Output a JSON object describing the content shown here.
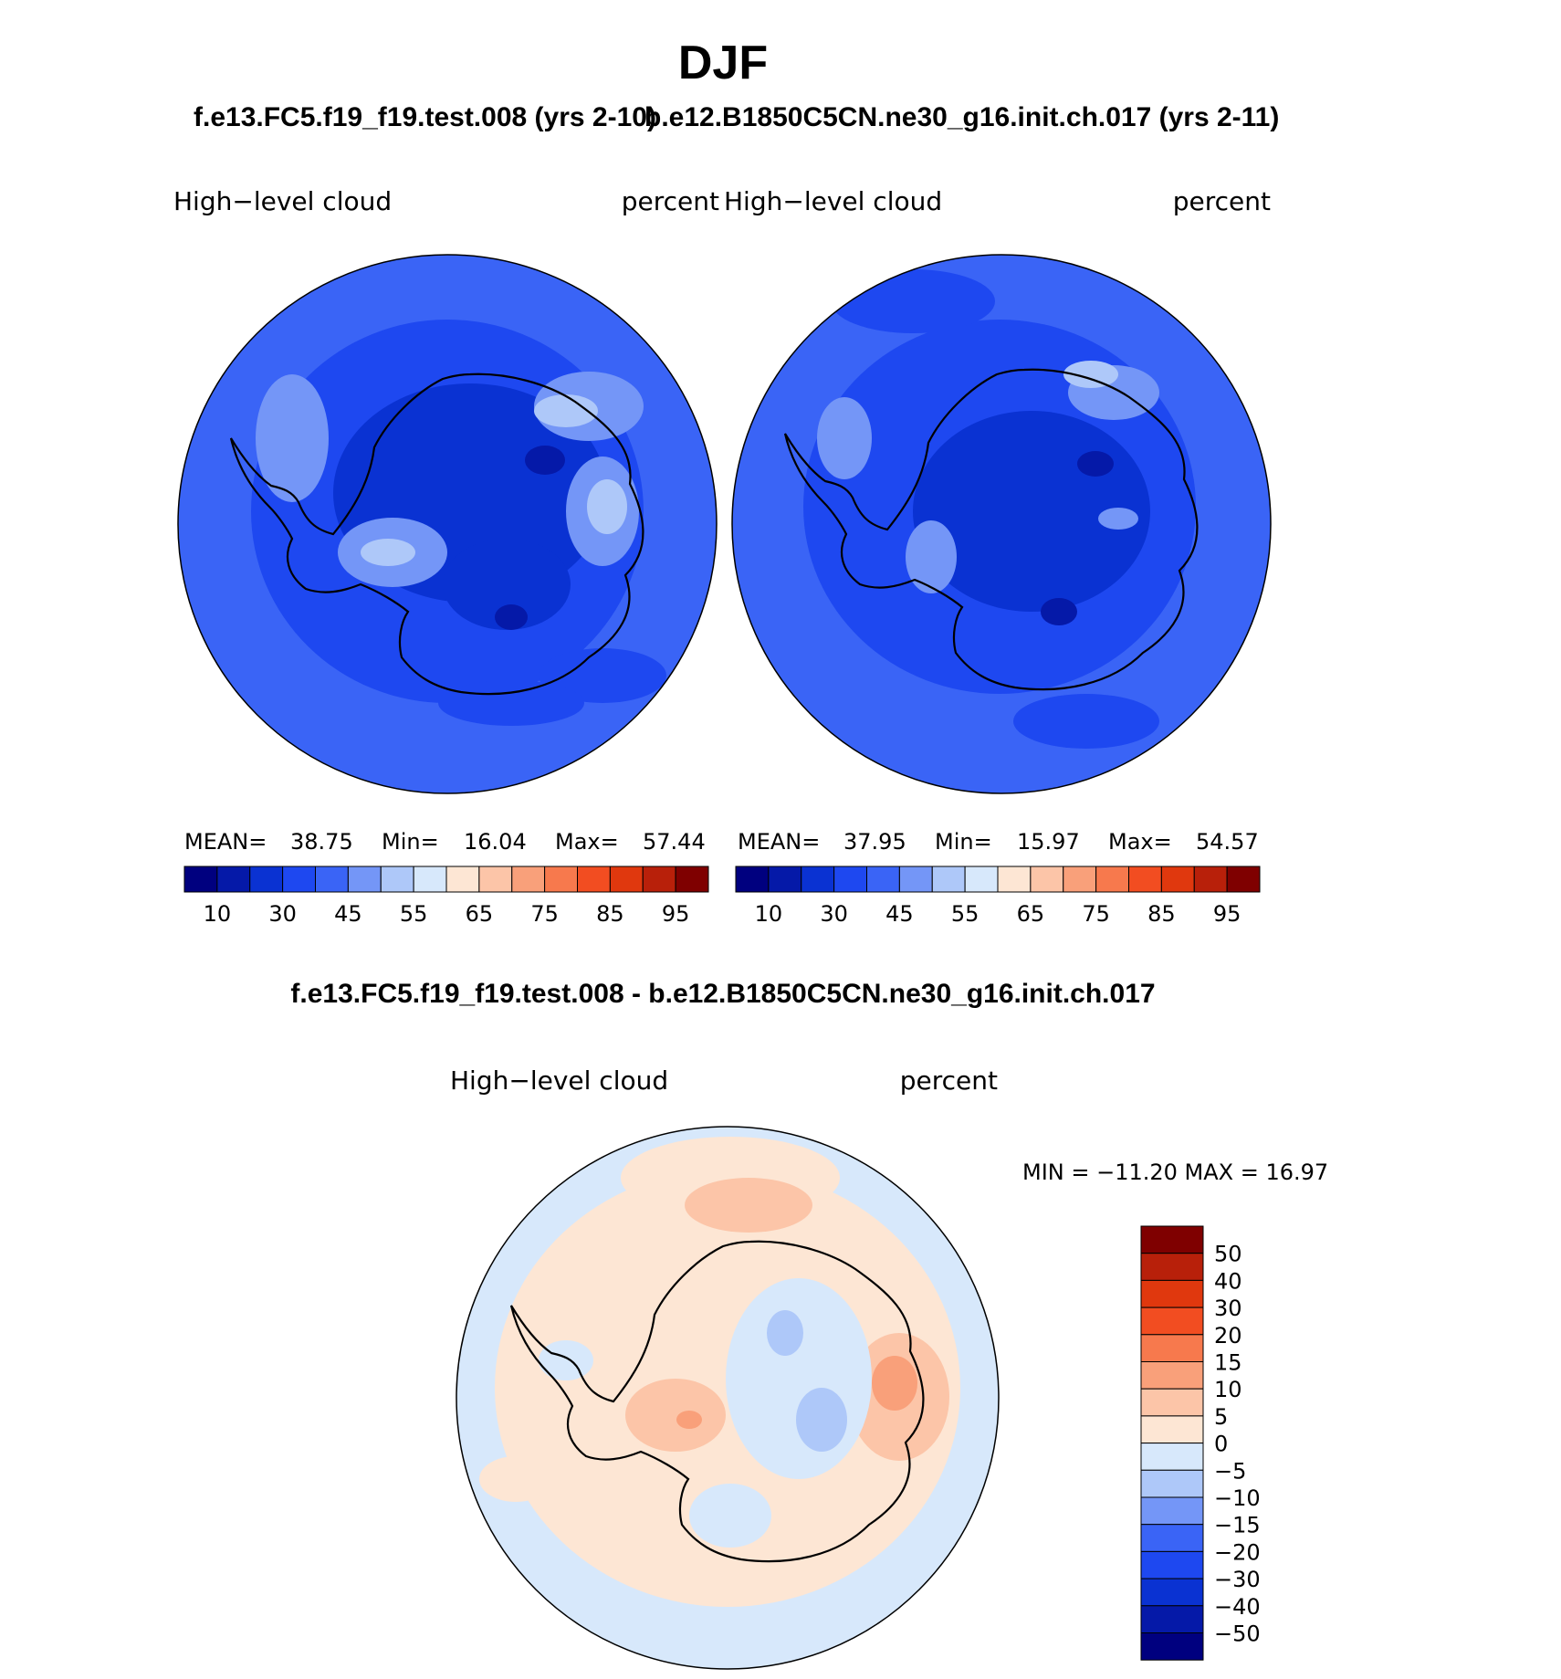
{
  "page_title": "DJF",
  "panels": [
    {
      "case": "f.e13.FC5.f19_f19.test.008 (yrs 2-10)",
      "variable": "High−level  cloud",
      "units": "percent",
      "stats": {
        "mean_label": "MEAN=",
        "mean": "38.75",
        "min_label": "Min=",
        "min": "16.04",
        "max_label": "Max=",
        "max": "57.44"
      }
    },
    {
      "case": "b.e12.B1850C5CN.ne30_g16.init.ch.017 (yrs 2-11)",
      "variable": "High−level  cloud",
      "units": "percent",
      "stats": {
        "mean_label": "MEAN=",
        "mean": "37.95",
        "min_label": "Min=",
        "min": "15.97",
        "max_label": "Max=",
        "max": "54.57"
      }
    }
  ],
  "diff_panel": {
    "title": "f.e13.FC5.f19_f19.test.008 - b.e12.B1850C5CN.ne30_g16.init.ch.017",
    "variable": "High−level  cloud",
    "units": "percent",
    "minmax_text": "MIN  =  −11.20  MAX  =    16.97"
  },
  "colorbar_main": {
    "colors": [
      "#00007f",
      "#0519a8",
      "#0a32d2",
      "#1e48f0",
      "#3a64f6",
      "#7496f7",
      "#aec8f9",
      "#d7e8fb",
      "#fde6d4",
      "#fcc5a8",
      "#f9a07a",
      "#f7794d",
      "#f24d21",
      "#e0380e",
      "#b8200a",
      "#7f0000"
    ],
    "tick_labels": [
      "10",
      "30",
      "45",
      "55",
      "65",
      "75",
      "85",
      "95"
    ]
  },
  "colorbar_diff": {
    "colors_top_to_bottom": [
      "#7f0000",
      "#b8200a",
      "#e0380e",
      "#f24d21",
      "#f7794d",
      "#f9a07a",
      "#fcc5a8",
      "#fde6d4",
      "#d7e8fb",
      "#aec8f9",
      "#7496f7",
      "#3a64f6",
      "#1e48f0",
      "#0a32d2",
      "#0519a8",
      "#00007f"
    ],
    "labels_top_to_bottom": [
      "50",
      "40",
      "30",
      "20",
      "15",
      "10",
      "5",
      "0",
      "−5",
      "−10",
      "−15",
      "−20",
      "−30",
      "−40",
      "−50"
    ]
  },
  "map_colors": {
    "ocean_left": "#3a64f6",
    "ocean_right": "#3a64f6",
    "diff_background": "#d7e8fb",
    "coast": "#000000"
  }
}
